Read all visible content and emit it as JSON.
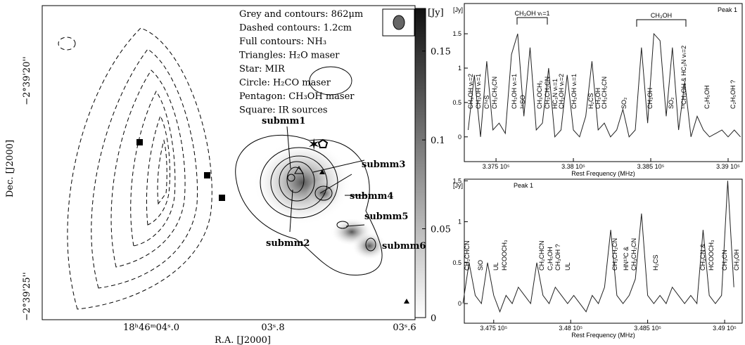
{
  "map": {
    "legend": [
      "Grey and contours: 862μm",
      "Dashed contours: 1.2cm",
      "Full contours: NH₃",
      "Triangles: H₂O maser",
      "Star: MIR",
      "Circle: H₂CO maser",
      "Pentagon: CH₃OH maser",
      "Square: IR sources"
    ],
    "sources": [
      "submm1",
      "submm2",
      "submm3",
      "submm4",
      "submm5",
      "submm6"
    ],
    "dec_ticks": [
      "−2°39'20''",
      "−2°39'25''"
    ],
    "ra_ticks": [
      "18ʰ46ᵐ04ˢ.0",
      "03ˢ.8",
      "03ˢ.6"
    ],
    "xlabel": "R.A. [J2000]",
    "ylabel": "Dec. [J2000]",
    "colorbar": {
      "unit": "[Jy]",
      "lim": [
        0,
        0.174
      ],
      "ticks": [
        0,
        0.05,
        0.1,
        0.15
      ]
    }
  },
  "chart_data": [
    {
      "type": "line",
      "label": "Peak 1",
      "ylabel": "[Jy]",
      "xlabel": "Rest Frequency (MHz)",
      "color": "#222",
      "x": [
        337320,
        337360,
        337400,
        337440,
        337480,
        337520,
        337560,
        337600,
        337640,
        337680,
        337720,
        337760,
        337800,
        337840,
        337880,
        337920,
        337960,
        338000,
        338040,
        338080,
        338120,
        338160,
        338200,
        338240,
        338280,
        338320,
        338360,
        338400,
        338440,
        338480,
        338520,
        338560,
        338600,
        338640,
        338680,
        338720,
        338760,
        338800,
        338840,
        338880,
        338920,
        338960,
        339000,
        339040,
        339080
      ],
      "values": [
        0.1,
        0.9,
        0.0,
        1.1,
        0.1,
        0.2,
        0.05,
        1.2,
        1.5,
        0.3,
        1.3,
        0.1,
        0.2,
        1.0,
        0.0,
        0.1,
        0.9,
        0.1,
        0.0,
        0.3,
        1.1,
        0.1,
        0.2,
        0.0,
        0.1,
        0.4,
        0.0,
        0.1,
        1.3,
        0.2,
        1.5,
        1.4,
        0.3,
        1.3,
        0.1,
        0.8,
        0.0,
        0.3,
        0.1,
        0.0,
        0.05,
        0.1,
        0.0,
        0.1,
        0.0
      ],
      "xlim": [
        337295,
        339091
      ],
      "ylim": [
        -0.36,
        1.94
      ],
      "xticks": [
        {
          "value": 337500,
          "label": "3.375 10⁵"
        },
        {
          "value": 338000,
          "label": "3.38 10⁵"
        },
        {
          "value": 338500,
          "label": "3.385 10⁵"
        },
        {
          "value": 339000,
          "label": "3.39 10⁵"
        }
      ],
      "yticks": [
        0,
        0.5,
        1,
        1.5
      ],
      "brackets": [
        "CH₃OH vₜ=1",
        "CH₃OH"
      ],
      "annotations": [
        "CH₃OH vₜ=2",
        "CH₃OH vₜ=1",
        "C³⁴S",
        "CH₃CH₂CN",
        "CH₃OH vₜ=1",
        "³⁴SO",
        "CH₃OCH₃",
        "CH₃CH₂CN",
        "HC₃N vₜ=1",
        "CH₃OH vₜ=2",
        "CH₃OH vₜ=1",
        "H₂CS",
        "CH₃OH",
        "CH₃CH₂CN",
        "SO₂",
        "CH₃OH",
        "SO₂",
        "¹³CH₃OH & HC₃N vₜ=2",
        "C₂H₅OH",
        "C₂H₅OH ?"
      ]
    },
    {
      "type": "line",
      "label": "Peak 1",
      "ylabel": "[Jy]",
      "xlabel": "Rest Frequency (MHz)",
      "color": "#222",
      "x": [
        347300,
        347340,
        347380,
        347420,
        347460,
        347500,
        347540,
        347580,
        347620,
        347660,
        347700,
        347740,
        347780,
        347820,
        347860,
        347900,
        347940,
        347980,
        348020,
        348060,
        348100,
        348140,
        348180,
        348220,
        348260,
        348300,
        348340,
        348380,
        348420,
        348460,
        348500,
        348540,
        348580,
        348620,
        348660,
        348700,
        348740,
        348780,
        348820,
        348860,
        348900,
        348940,
        348980,
        349020,
        349060
      ],
      "values": [
        0.0,
        0.5,
        0.1,
        0.0,
        0.5,
        0.1,
        -0.1,
        0.1,
        0.0,
        0.2,
        0.1,
        0.0,
        0.5,
        0.1,
        0.0,
        0.2,
        0.1,
        0.0,
        0.1,
        0.0,
        -0.1,
        0.1,
        0.0,
        0.2,
        0.9,
        0.1,
        0.0,
        0.1,
        0.3,
        1.1,
        0.1,
        0.0,
        0.1,
        0.0,
        0.2,
        0.1,
        0.0,
        0.1,
        0.0,
        0.9,
        0.1,
        0.0,
        0.1,
        1.5,
        0.2
      ],
      "xlim": [
        347309,
        349114
      ],
      "ylim": [
        -0.24,
        1.52
      ],
      "xticks": [
        {
          "value": 347500,
          "label": "3.475 10⁵"
        },
        {
          "value": 348000,
          "label": "3.48 10⁵"
        },
        {
          "value": 348500,
          "label": "3.485 10⁵"
        },
        {
          "value": 349000,
          "label": "3.49 10⁵"
        }
      ],
      "yticks": [
        0,
        0.5,
        1,
        1.5
      ],
      "annotations": [
        "CH₂CHCN",
        "SiO",
        "UL",
        "HCOOCH₃",
        "CH₂CHCN",
        "C₂H₅OH",
        "CH₃OH ?",
        "UL",
        "CH₃CH₂CN",
        "HN¹³C &",
        "CH₃CH₂CN",
        "H₂CS",
        "CH₃CN &",
        "HCOOCH₃",
        "CH₃CN",
        "CH₃OH"
      ]
    }
  ]
}
